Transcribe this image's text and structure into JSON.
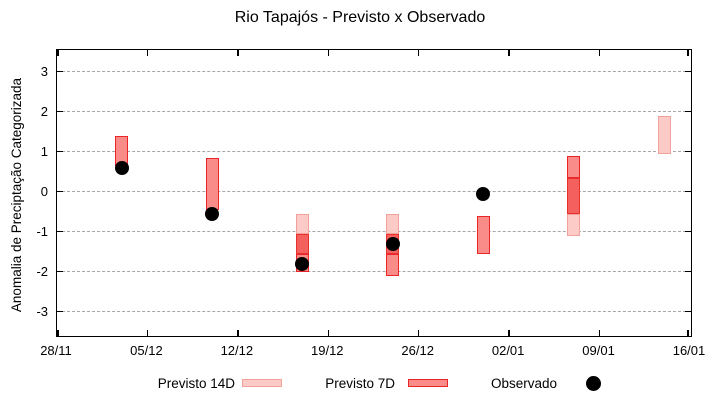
{
  "title": "Rio Tapajós - Previsto x Observado",
  "legend": {
    "previsto_14d_label": "Previsto 14D",
    "previsto_7d_label": "Previsto 7D",
    "observado_label": "Observado"
  },
  "colors": {
    "previsto_14d_fill": "#fccbc7",
    "previsto_14d_border": "#f2a09a",
    "previsto_7d_fill": "#f98b88",
    "previsto_7d_border": "#eb2428",
    "overlap_fill": "#f4605d",
    "observado": "#000000",
    "grid": "#a6a6a6"
  },
  "chart_data": {
    "type": "bar",
    "subtype": "forecast-range-bars-with-observed-points",
    "title": "Rio Tapajós - Previsto x Observado",
    "xlabel": "",
    "ylabel": "Anomalia de Preciptação Categorizada",
    "ylim": [
      -3.6,
      3.6
    ],
    "y_ticks": [
      3,
      2,
      1,
      0,
      -1,
      -2,
      -3
    ],
    "x_tick_labels": [
      "28/11",
      "05/12",
      "12/12",
      "19/12",
      "26/12",
      "02/01",
      "09/01",
      "16/01"
    ],
    "x_tick_days": [
      0,
      7,
      14,
      21,
      28,
      35,
      42,
      49
    ],
    "x_range_days": 49,
    "grid": "horizontal dashed gridlines at integer y values",
    "legend_position": "bottom, outside plot",
    "bars": [
      {
        "date": "03/12",
        "day": 5,
        "previsto_14d": null,
        "previsto_7d": {
          "top": 1.4,
          "bottom": 0.65
        },
        "observado": 0.6
      },
      {
        "date": "10/12",
        "day": 12,
        "previsto_14d": null,
        "previsto_7d": {
          "top": 0.85,
          "bottom": -0.45
        },
        "observado": -0.55
      },
      {
        "date": "17/12",
        "day": 19,
        "previsto_14d": {
          "top": -0.55,
          "bottom": -1.55
        },
        "previsto_7d": {
          "top": -1.05,
          "bottom": -2.0
        },
        "observado": -1.8
      },
      {
        "date": "24/12",
        "day": 26,
        "previsto_14d": {
          "top": -0.55,
          "bottom": -1.55
        },
        "previsto_7d": {
          "top": -1.05,
          "bottom": -2.1
        },
        "observado": -1.3
      },
      {
        "date": "31/12",
        "day": 33,
        "previsto_14d": null,
        "previsto_7d": {
          "top": -0.6,
          "bottom": -1.55
        },
        "observado": -0.05
      },
      {
        "date": "07/01",
        "day": 40,
        "previsto_14d": {
          "top": 0.35,
          "bottom": -1.1
        },
        "previsto_7d": {
          "top": 0.9,
          "bottom": -0.55
        },
        "observado": null
      },
      {
        "date": "14/01",
        "day": 47,
        "previsto_14d": {
          "top": 1.9,
          "bottom": 0.95
        },
        "previsto_7d": null,
        "observado": null
      }
    ]
  }
}
